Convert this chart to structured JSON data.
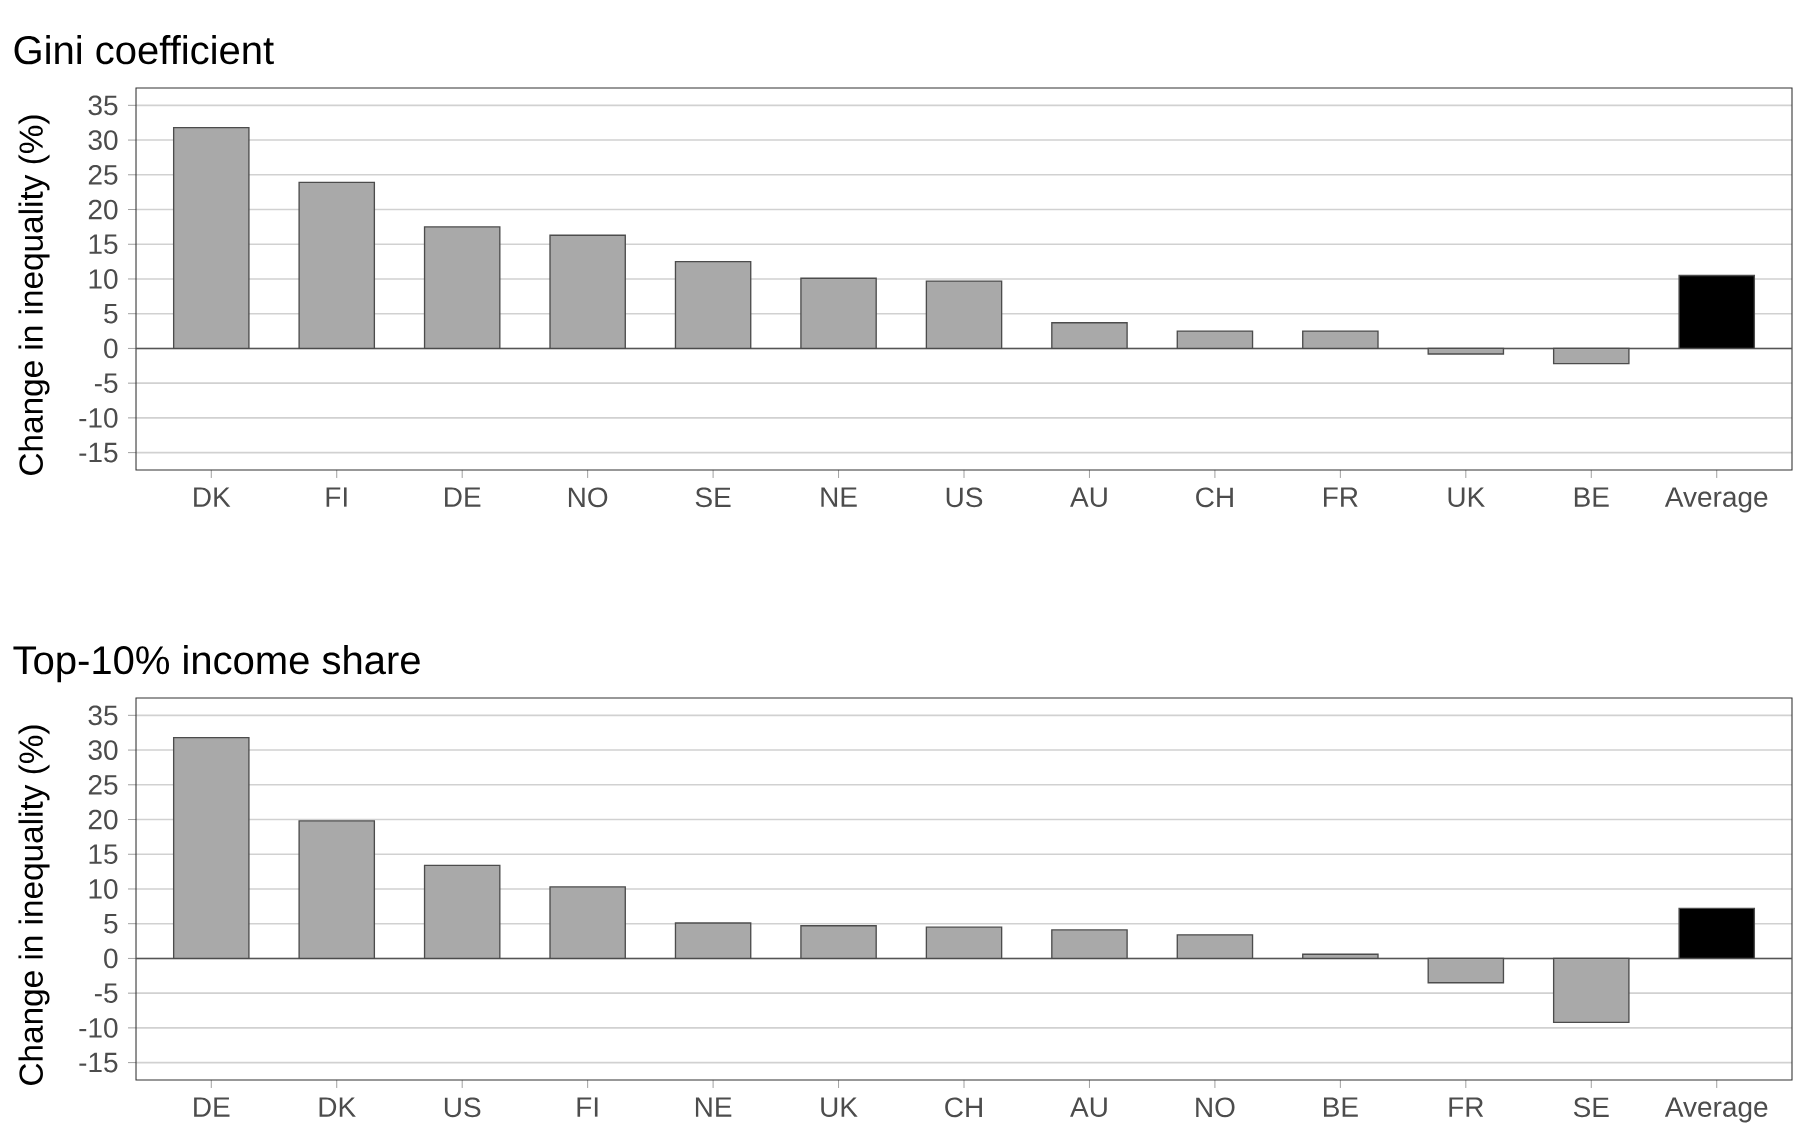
{
  "chart_data": [
    {
      "type": "bar",
      "title": "Gini coefficient",
      "ylabel": "Change in inequality (%)",
      "categories": [
        "DK",
        "FI",
        "DE",
        "NO",
        "SE",
        "NE",
        "US",
        "AU",
        "CH",
        "FR",
        "UK",
        "BE",
        "Average"
      ],
      "values": [
        31.8,
        23.9,
        17.5,
        16.3,
        12.5,
        10.1,
        9.7,
        3.7,
        2.5,
        2.5,
        -0.8,
        -2.2,
        10.5
      ],
      "colors": [
        "#a9a9a9",
        "#a9a9a9",
        "#a9a9a9",
        "#a9a9a9",
        "#a9a9a9",
        "#a9a9a9",
        "#a9a9a9",
        "#a9a9a9",
        "#a9a9a9",
        "#a9a9a9",
        "#a9a9a9",
        "#a9a9a9",
        "#000000"
      ],
      "ylim": [
        -17.5,
        37.5
      ],
      "yticks": [
        -15,
        -10,
        -5,
        0,
        5,
        10,
        15,
        20,
        25,
        30,
        35
      ],
      "grid": "y",
      "ref_lines": [
        {
          "axis": "y",
          "value": 0,
          "color": "#555555"
        }
      ]
    },
    {
      "type": "bar",
      "title": "Top-10% income share",
      "ylabel": "Change in inequality (%)",
      "categories": [
        "DE",
        "DK",
        "US",
        "FI",
        "NE",
        "UK",
        "CH",
        "AU",
        "NO",
        "BE",
        "FR",
        "SE",
        "Average"
      ],
      "values": [
        31.8,
        19.8,
        13.4,
        10.3,
        5.1,
        4.7,
        4.5,
        4.1,
        3.4,
        0.6,
        -3.5,
        -9.2,
        7.2
      ],
      "colors": [
        "#a9a9a9",
        "#a9a9a9",
        "#a9a9a9",
        "#a9a9a9",
        "#a9a9a9",
        "#a9a9a9",
        "#a9a9a9",
        "#a9a9a9",
        "#a9a9a9",
        "#a9a9a9",
        "#a9a9a9",
        "#a9a9a9",
        "#000000"
      ],
      "ylim": [
        -17.5,
        37.5
      ],
      "yticks": [
        -15,
        -10,
        -5,
        0,
        5,
        10,
        15,
        20,
        25,
        30,
        35
      ],
      "grid": "y",
      "ref_lines": [
        {
          "axis": "y",
          "value": 0,
          "color": "#555555"
        }
      ]
    }
  ]
}
